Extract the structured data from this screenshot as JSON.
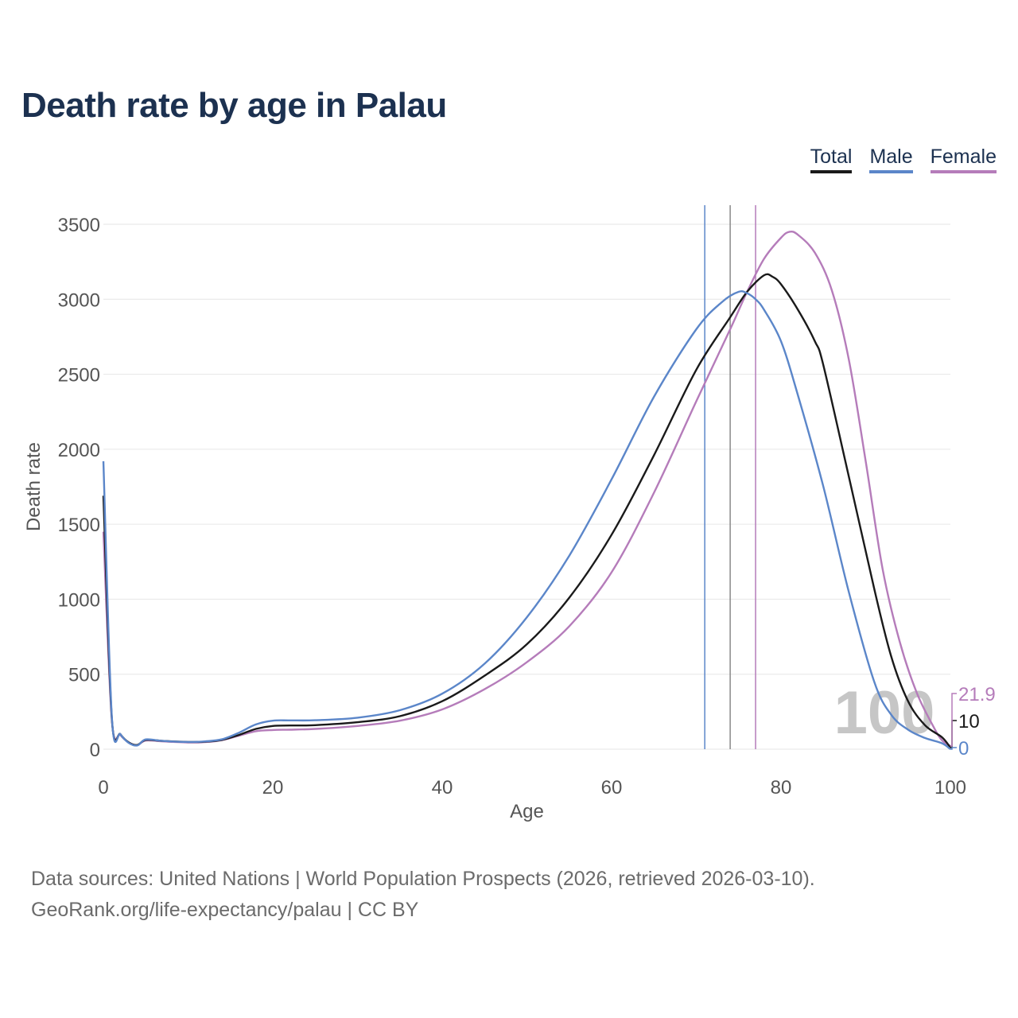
{
  "title": "Death rate by age in Palau",
  "legend": {
    "total": {
      "label": "Total",
      "color": "#1a1a1a"
    },
    "male": {
      "label": "Male",
      "color": "#5b86c9"
    },
    "female": {
      "label": "Female",
      "color": "#b57cba"
    }
  },
  "footer": {
    "line1": "Data sources: United Nations | World Population Prospects (2026, retrieved 2026-03-10).",
    "line2": "GeoRank.org/life-expectancy/palau | CC BY"
  },
  "chart_data": {
    "type": "line",
    "title": "Death rate by age in Palau",
    "xlabel": "Age",
    "ylabel": "Death rate",
    "xlim": [
      0,
      100
    ],
    "ylim": [
      0,
      3500
    ],
    "xticks": [
      0,
      20,
      40,
      60,
      80,
      100
    ],
    "yticks": [
      0,
      500,
      1000,
      1500,
      2000,
      2500,
      3000,
      3500
    ],
    "grid": true,
    "legend_position": "top-right",
    "watermark": "100",
    "series": [
      {
        "name": "Total",
        "color": "#1a1a1a",
        "points": [
          [
            0,
            1690
          ],
          [
            1,
            200
          ],
          [
            2,
            100
          ],
          [
            3,
            45
          ],
          [
            4,
            28
          ],
          [
            5,
            62
          ],
          [
            7,
            55
          ],
          [
            10,
            48
          ],
          [
            12,
            50
          ],
          [
            14,
            62
          ],
          [
            16,
            95
          ],
          [
            18,
            135
          ],
          [
            20,
            155
          ],
          [
            22,
            158
          ],
          [
            25,
            160
          ],
          [
            30,
            180
          ],
          [
            35,
            220
          ],
          [
            40,
            320
          ],
          [
            45,
            490
          ],
          [
            50,
            700
          ],
          [
            55,
            1010
          ],
          [
            60,
            1430
          ],
          [
            65,
            1960
          ],
          [
            70,
            2530
          ],
          [
            74,
            2880
          ],
          [
            76,
            3050
          ],
          [
            78,
            3160
          ],
          [
            79,
            3150
          ],
          [
            80,
            3100
          ],
          [
            82,
            2930
          ],
          [
            84,
            2720
          ],
          [
            85,
            2560
          ],
          [
            88,
            1820
          ],
          [
            91,
            1070
          ],
          [
            93,
            620
          ],
          [
            95,
            320
          ],
          [
            97,
            160
          ],
          [
            99,
            80
          ],
          [
            100,
            10
          ]
        ],
        "end_label": "10"
      },
      {
        "name": "Male",
        "color": "#5b86c9",
        "points": [
          [
            0,
            1920
          ],
          [
            1,
            210
          ],
          [
            2,
            100
          ],
          [
            3,
            42
          ],
          [
            4,
            25
          ],
          [
            5,
            65
          ],
          [
            7,
            55
          ],
          [
            10,
            48
          ],
          [
            12,
            52
          ],
          [
            14,
            66
          ],
          [
            16,
            110
          ],
          [
            18,
            165
          ],
          [
            20,
            190
          ],
          [
            22,
            192
          ],
          [
            25,
            193
          ],
          [
            30,
            210
          ],
          [
            35,
            260
          ],
          [
            40,
            370
          ],
          [
            45,
            570
          ],
          [
            50,
            880
          ],
          [
            55,
            1290
          ],
          [
            60,
            1800
          ],
          [
            65,
            2350
          ],
          [
            70,
            2800
          ],
          [
            73,
            2980
          ],
          [
            75,
            3050
          ],
          [
            76,
            3040
          ],
          [
            77,
            3000
          ],
          [
            78,
            2930
          ],
          [
            80,
            2720
          ],
          [
            82,
            2360
          ],
          [
            85,
            1750
          ],
          [
            88,
            1050
          ],
          [
            91,
            450
          ],
          [
            93,
            230
          ],
          [
            95,
            130
          ],
          [
            97,
            75
          ],
          [
            99,
            40
          ],
          [
            100,
            0
          ]
        ],
        "end_label": "0"
      },
      {
        "name": "Female",
        "color": "#b57cba",
        "points": [
          [
            0,
            1450
          ],
          [
            1,
            190
          ],
          [
            2,
            95
          ],
          [
            3,
            45
          ],
          [
            4,
            27
          ],
          [
            5,
            58
          ],
          [
            7,
            52
          ],
          [
            10,
            45
          ],
          [
            12,
            47
          ],
          [
            14,
            60
          ],
          [
            16,
            90
          ],
          [
            18,
            120
          ],
          [
            20,
            128
          ],
          [
            22,
            130
          ],
          [
            25,
            135
          ],
          [
            30,
            155
          ],
          [
            35,
            190
          ],
          [
            40,
            265
          ],
          [
            45,
            400
          ],
          [
            50,
            580
          ],
          [
            55,
            820
          ],
          [
            60,
            1180
          ],
          [
            65,
            1710
          ],
          [
            70,
            2320
          ],
          [
            74,
            2800
          ],
          [
            76,
            3050
          ],
          [
            78,
            3270
          ],
          [
            80,
            3410
          ],
          [
            81,
            3450
          ],
          [
            82,
            3430
          ],
          [
            84,
            3310
          ],
          [
            86,
            3060
          ],
          [
            88,
            2600
          ],
          [
            90,
            1920
          ],
          [
            92,
            1200
          ],
          [
            94,
            720
          ],
          [
            96,
            380
          ],
          [
            98,
            150
          ],
          [
            99,
            60
          ],
          [
            100,
            21.9
          ]
        ],
        "end_label": "21.9"
      }
    ],
    "reference_lines": [
      {
        "name": "Male",
        "x": 71,
        "color": "#5b86c9"
      },
      {
        "name": "Total",
        "x": 74,
        "color": "#888888"
      },
      {
        "name": "Female",
        "x": 77,
        "color": "#b57cba"
      }
    ]
  }
}
